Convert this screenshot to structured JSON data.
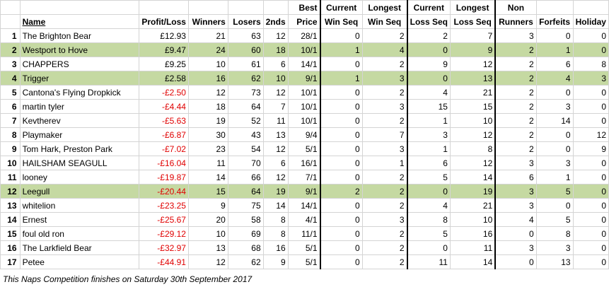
{
  "headers": {
    "top": {
      "best": "Best",
      "current_win": "Current",
      "longest_win": "Longest",
      "current_loss": "Current",
      "longest_loss": "Longest",
      "non_runners": "Non"
    },
    "bottom": {
      "name": "Name",
      "profit_loss": "Profit/Loss",
      "winners": "Winners",
      "losers": "Losers",
      "seconds": "2nds",
      "best": "Price",
      "current_win": "Win Seq",
      "longest_win": "Win Seq",
      "current_loss": "Loss Seq",
      "longest_loss": "Loss Seq",
      "non_runners": "Runners",
      "forfeits": "Forfeits",
      "holiday": "Holiday"
    }
  },
  "rows": [
    {
      "rank": "1",
      "name": "The Brighton Bear",
      "pl": "£12.93",
      "winners": "21",
      "losers": "63",
      "seconds": "12",
      "best": "28/1",
      "cws": "0",
      "lws": "2",
      "cls": "2",
      "lls": "7",
      "nr": "3",
      "forfeits": "0",
      "holiday": "0",
      "highlight": false,
      "negative": false
    },
    {
      "rank": "2",
      "name": "Westport to Hove",
      "pl": "£9.47",
      "winners": "24",
      "losers": "60",
      "seconds": "18",
      "best": "10/1",
      "cws": "1",
      "lws": "4",
      "cls": "0",
      "lls": "9",
      "nr": "2",
      "forfeits": "1",
      "holiday": "0",
      "highlight": true,
      "negative": false
    },
    {
      "rank": "3",
      "name": "CHAPPERS",
      "pl": "£9.25",
      "winners": "10",
      "losers": "61",
      "seconds": "6",
      "best": "14/1",
      "cws": "0",
      "lws": "2",
      "cls": "9",
      "lls": "12",
      "nr": "2",
      "forfeits": "6",
      "holiday": "8",
      "highlight": false,
      "negative": false
    },
    {
      "rank": "4",
      "name": "Trigger",
      "pl": "£2.58",
      "winners": "16",
      "losers": "62",
      "seconds": "10",
      "best": "9/1",
      "cws": "1",
      "lws": "3",
      "cls": "0",
      "lls": "13",
      "nr": "2",
      "forfeits": "4",
      "holiday": "3",
      "highlight": true,
      "negative": false
    },
    {
      "rank": "5",
      "name": "Cantona's Flying Dropkick",
      "pl": "-£2.50",
      "winners": "12",
      "losers": "73",
      "seconds": "12",
      "best": "10/1",
      "cws": "0",
      "lws": "2",
      "cls": "4",
      "lls": "21",
      "nr": "2",
      "forfeits": "0",
      "holiday": "0",
      "highlight": false,
      "negative": true
    },
    {
      "rank": "6",
      "name": "martin tyler",
      "pl": "-£4.44",
      "winners": "18",
      "losers": "64",
      "seconds": "7",
      "best": "10/1",
      "cws": "0",
      "lws": "3",
      "cls": "15",
      "lls": "15",
      "nr": "2",
      "forfeits": "3",
      "holiday": "0",
      "highlight": false,
      "negative": true
    },
    {
      "rank": "7",
      "name": "Kevtherev",
      "pl": "-£5.63",
      "winners": "19",
      "losers": "52",
      "seconds": "11",
      "best": "10/1",
      "cws": "0",
      "lws": "2",
      "cls": "1",
      "lls": "10",
      "nr": "2",
      "forfeits": "14",
      "holiday": "0",
      "highlight": false,
      "negative": true
    },
    {
      "rank": "8",
      "name": "Playmaker",
      "pl": "-£6.87",
      "winners": "30",
      "losers": "43",
      "seconds": "13",
      "best": "9/4",
      "cws": "0",
      "lws": "7",
      "cls": "3",
      "lls": "12",
      "nr": "2",
      "forfeits": "0",
      "holiday": "12",
      "highlight": false,
      "negative": true
    },
    {
      "rank": "9",
      "name": "Tom Hark, Preston Park",
      "pl": "-£7.02",
      "winners": "23",
      "losers": "54",
      "seconds": "12",
      "best": "5/1",
      "cws": "0",
      "lws": "3",
      "cls": "1",
      "lls": "8",
      "nr": "2",
      "forfeits": "0",
      "holiday": "9",
      "highlight": false,
      "negative": true
    },
    {
      "rank": "10",
      "name": "HAILSHAM SEAGULL",
      "pl": "-£16.04",
      "winners": "11",
      "losers": "70",
      "seconds": "6",
      "best": "16/1",
      "cws": "0",
      "lws": "1",
      "cls": "6",
      "lls": "12",
      "nr": "3",
      "forfeits": "3",
      "holiday": "0",
      "highlight": false,
      "negative": true
    },
    {
      "rank": "11",
      "name": "looney",
      "pl": "-£19.87",
      "winners": "14",
      "losers": "66",
      "seconds": "12",
      "best": "7/1",
      "cws": "0",
      "lws": "2",
      "cls": "5",
      "lls": "14",
      "nr": "6",
      "forfeits": "1",
      "holiday": "0",
      "highlight": false,
      "negative": true
    },
    {
      "rank": "12",
      "name": "Leegull",
      "pl": "-£20.44",
      "winners": "15",
      "losers": "64",
      "seconds": "19",
      "best": "9/1",
      "cws": "2",
      "lws": "2",
      "cls": "0",
      "lls": "19",
      "nr": "3",
      "forfeits": "5",
      "holiday": "0",
      "highlight": true,
      "negative": true
    },
    {
      "rank": "13",
      "name": "whitelion",
      "pl": "-£23.25",
      "winners": "9",
      "losers": "75",
      "seconds": "14",
      "best": "14/1",
      "cws": "0",
      "lws": "2",
      "cls": "4",
      "lls": "21",
      "nr": "3",
      "forfeits": "0",
      "holiday": "0",
      "highlight": false,
      "negative": true
    },
    {
      "rank": "14",
      "name": "Ernest",
      "pl": "-£25.67",
      "winners": "20",
      "losers": "58",
      "seconds": "8",
      "best": "4/1",
      "cws": "0",
      "lws": "3",
      "cls": "8",
      "lls": "10",
      "nr": "4",
      "forfeits": "5",
      "holiday": "0",
      "highlight": false,
      "negative": true
    },
    {
      "rank": "15",
      "name": "foul old ron",
      "pl": "-£29.12",
      "winners": "10",
      "losers": "69",
      "seconds": "8",
      "best": "11/1",
      "cws": "0",
      "lws": "2",
      "cls": "5",
      "lls": "16",
      "nr": "0",
      "forfeits": "8",
      "holiday": "0",
      "highlight": false,
      "negative": true
    },
    {
      "rank": "16",
      "name": "The Larkfield Bear",
      "pl": "-£32.97",
      "winners": "13",
      "losers": "68",
      "seconds": "16",
      "best": "5/1",
      "cws": "0",
      "lws": "2",
      "cls": "0",
      "lls": "11",
      "nr": "3",
      "forfeits": "3",
      "holiday": "0",
      "highlight": false,
      "negative": true
    },
    {
      "rank": "17",
      "name": "Petee",
      "pl": "-£44.91",
      "winners": "12",
      "losers": "62",
      "seconds": "9",
      "best": "5/1",
      "cws": "0",
      "lws": "2",
      "cls": "11",
      "lls": "14",
      "nr": "0",
      "forfeits": "13",
      "holiday": "0",
      "highlight": false,
      "negative": true
    }
  ],
  "footer": "This Naps Competition finishes on Saturday 30th September 2017",
  "colors": {
    "highlight": "#c5d9a2",
    "negative": "#e00000",
    "gridline": "#d4d4d4"
  }
}
